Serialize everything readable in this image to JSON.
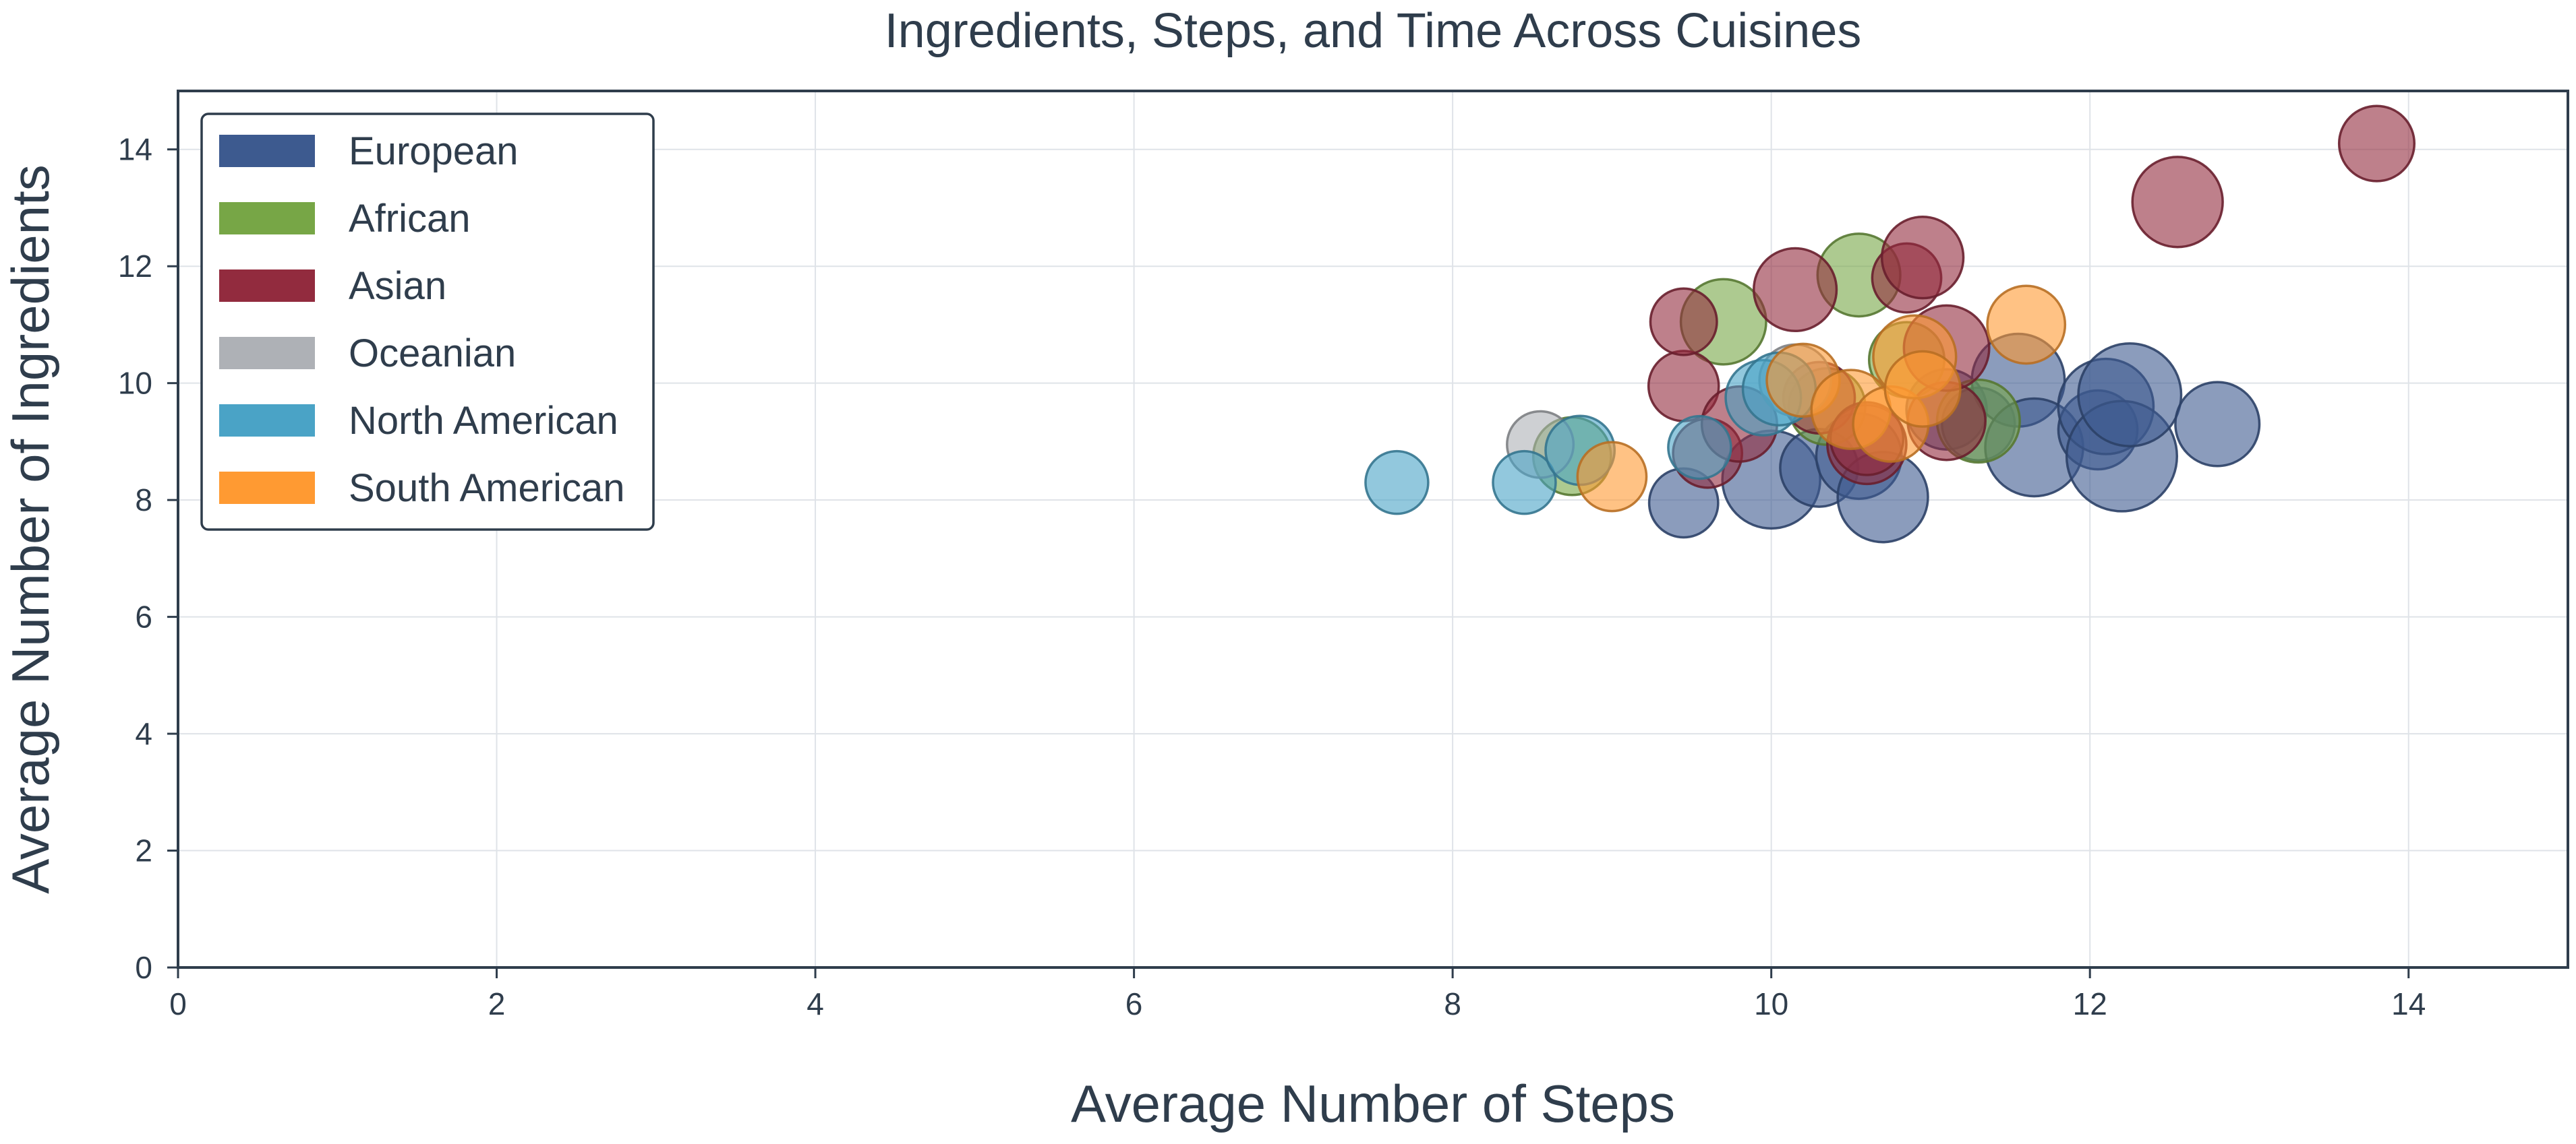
{
  "chart_data": {
    "type": "scatter",
    "title": "Ingredients, Steps, and Time Across Cuisines",
    "xlabel": "Average Number of Steps",
    "ylabel": "Average Number of Ingredients",
    "xlim": [
      0,
      15
    ],
    "ylim": [
      0,
      15
    ],
    "xticks": [
      0,
      2,
      4,
      6,
      8,
      10,
      12,
      14
    ],
    "yticks": [
      0,
      2,
      4,
      6,
      8,
      10,
      12,
      14
    ],
    "grid": true,
    "legend_position": "top-left",
    "series": [
      {
        "name": "European",
        "color": "#3d5a8f",
        "points": [
          {
            "x": 9.45,
            "y": 7.95,
            "size": 0.55
          },
          {
            "x": 10.0,
            "y": 8.35,
            "size": 0.78
          },
          {
            "x": 10.3,
            "y": 8.55,
            "size": 0.62
          },
          {
            "x": 10.55,
            "y": 8.75,
            "size": 0.68
          },
          {
            "x": 10.7,
            "y": 8.05,
            "size": 0.72
          },
          {
            "x": 11.1,
            "y": 9.55,
            "size": 0.64
          },
          {
            "x": 11.3,
            "y": 9.3,
            "size": 0.58
          },
          {
            "x": 11.55,
            "y": 10.05,
            "size": 0.74
          },
          {
            "x": 11.65,
            "y": 8.9,
            "size": 0.78
          },
          {
            "x": 12.05,
            "y": 9.2,
            "size": 0.63
          },
          {
            "x": 12.1,
            "y": 9.6,
            "size": 0.76
          },
          {
            "x": 12.2,
            "y": 8.75,
            "size": 0.88
          },
          {
            "x": 12.25,
            "y": 9.8,
            "size": 0.82
          },
          {
            "x": 12.8,
            "y": 9.3,
            "size": 0.67
          }
        ]
      },
      {
        "name": "African",
        "color": "#77a646",
        "points": [
          {
            "x": 8.75,
            "y": 8.75,
            "size": 0.62
          },
          {
            "x": 9.7,
            "y": 11.05,
            "size": 0.68
          },
          {
            "x": 10.35,
            "y": 9.6,
            "size": 0.61
          },
          {
            "x": 10.55,
            "y": 11.85,
            "size": 0.66
          },
          {
            "x": 10.85,
            "y": 10.4,
            "size": 0.6
          },
          {
            "x": 11.3,
            "y": 9.35,
            "size": 0.66
          }
        ]
      },
      {
        "name": "Asian",
        "color": "#922b3e",
        "points": [
          {
            "x": 9.45,
            "y": 9.95,
            "size": 0.56
          },
          {
            "x": 9.45,
            "y": 11.05,
            "size": 0.53
          },
          {
            "x": 9.6,
            "y": 8.8,
            "size": 0.55
          },
          {
            "x": 9.8,
            "y": 9.3,
            "size": 0.6
          },
          {
            "x": 10.15,
            "y": 11.6,
            "size": 0.66
          },
          {
            "x": 10.3,
            "y": 9.75,
            "size": 0.57
          },
          {
            "x": 10.6,
            "y": 8.95,
            "size": 0.63
          },
          {
            "x": 10.6,
            "y": 9.05,
            "size": 0.58
          },
          {
            "x": 10.85,
            "y": 11.8,
            "size": 0.55
          },
          {
            "x": 10.95,
            "y": 12.15,
            "size": 0.65
          },
          {
            "x": 11.1,
            "y": 9.35,
            "size": 0.62
          },
          {
            "x": 11.1,
            "y": 10.6,
            "size": 0.68
          },
          {
            "x": 12.55,
            "y": 13.1,
            "size": 0.72
          },
          {
            "x": 13.8,
            "y": 14.1,
            "size": 0.6
          }
        ]
      },
      {
        "name": "Oceanian",
        "color": "#aeb1b6",
        "points": [
          {
            "x": 8.55,
            "y": 8.95,
            "size": 0.53
          },
          {
            "x": 10.15,
            "y": 10.05,
            "size": 0.57
          }
        ]
      },
      {
        "name": "North American",
        "color": "#4aa3c6",
        "points": [
          {
            "x": 7.65,
            "y": 8.3,
            "size": 0.5
          },
          {
            "x": 8.45,
            "y": 8.3,
            "size": 0.5
          },
          {
            "x": 8.8,
            "y": 8.85,
            "size": 0.55
          },
          {
            "x": 9.55,
            "y": 8.9,
            "size": 0.5
          },
          {
            "x": 9.95,
            "y": 9.75,
            "size": 0.6
          },
          {
            "x": 10.05,
            "y": 9.9,
            "size": 0.58
          }
        ]
      },
      {
        "name": "South American",
        "color": "#ff9a32",
        "points": [
          {
            "x": 9.0,
            "y": 8.4,
            "size": 0.55
          },
          {
            "x": 10.2,
            "y": 10.05,
            "size": 0.58
          },
          {
            "x": 10.5,
            "y": 9.55,
            "size": 0.63
          },
          {
            "x": 10.75,
            "y": 9.3,
            "size": 0.6
          },
          {
            "x": 10.9,
            "y": 10.45,
            "size": 0.66
          },
          {
            "x": 10.95,
            "y": 9.9,
            "size": 0.6
          },
          {
            "x": 11.6,
            "y": 11.0,
            "size": 0.62
          }
        ]
      }
    ]
  }
}
